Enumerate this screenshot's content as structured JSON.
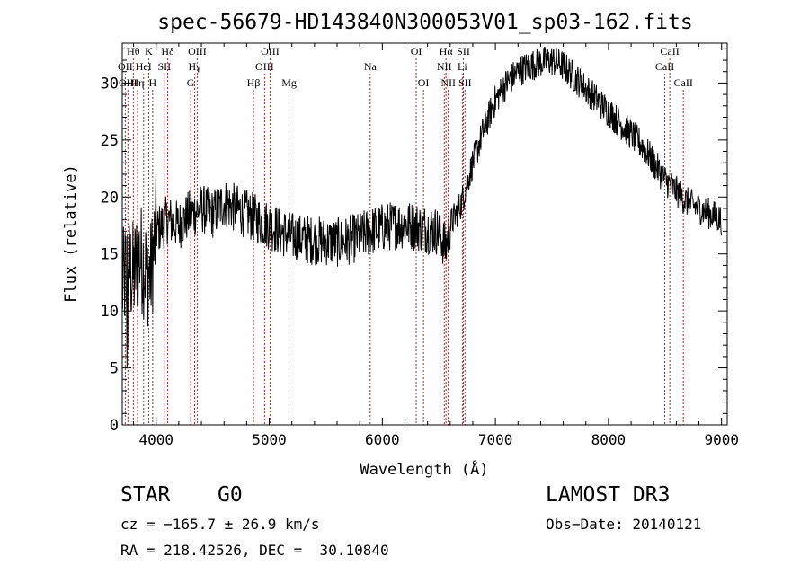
{
  "chart_data": {
    "type": "line",
    "title": "spec-56679-HD143840N300053V01_sp03-162.fits",
    "xlabel": "Wavelength (Å)",
    "ylabel": "Flux (relative)",
    "xlim": [
      3700,
      9050
    ],
    "ylim": [
      0,
      33.5
    ],
    "xticks": [
      4000,
      5000,
      6000,
      7000,
      8000,
      9000
    ],
    "yticks": [
      0,
      5,
      10,
      15,
      20,
      25,
      30
    ],
    "line_color": "#000000",
    "marker_color": "#b22222",
    "spectrum_anchors": {
      "x": [
        3700,
        3750,
        3800,
        3850,
        3900,
        3950,
        4000,
        4100,
        4200,
        4300,
        4400,
        4500,
        4600,
        4700,
        4800,
        4900,
        5000,
        5100,
        5200,
        5300,
        5400,
        5500,
        5600,
        5700,
        5800,
        5900,
        6000,
        6100,
        6200,
        6300,
        6400,
        6500,
        6560,
        6600,
        6700,
        6800,
        6900,
        7000,
        7100,
        7200,
        7300,
        7400,
        7500,
        7600,
        7700,
        7800,
        7900,
        8000,
        8100,
        8200,
        8300,
        8400,
        8500,
        8600,
        8700,
        8800,
        8900,
        9000
      ],
      "y": [
        12,
        14,
        13,
        15,
        14,
        13,
        17,
        18,
        17.5,
        18.5,
        19,
        18.5,
        19.5,
        19,
        18.5,
        18,
        17.5,
        17,
        16.5,
        16.3,
        16.2,
        16.1,
        16,
        16.2,
        16.5,
        17,
        17.3,
        17.5,
        17.6,
        17.4,
        17.2,
        17,
        15.5,
        17.5,
        19.5,
        23,
        26,
        28.5,
        30,
        31,
        31.5,
        31.8,
        32,
        31.5,
        30.5,
        29.5,
        28.5,
        27.5,
        26.5,
        25.5,
        24.5,
        23,
        21.5,
        20.5,
        19.5,
        19,
        18.5,
        18
      ]
    },
    "line_markers": [
      {
        "label": "Hθ",
        "x": 3798,
        "row": 0
      },
      {
        "label": "OII",
        "x": 3727,
        "row": 1
      },
      {
        "label": "OIII",
        "x": 3750,
        "row": 2
      },
      {
        "label": "Hη",
        "x": 3835,
        "row": 2
      },
      {
        "label": "HeI",
        "x": 3889,
        "row": 1
      },
      {
        "label": "K",
        "x": 3934,
        "row": 0
      },
      {
        "label": "H",
        "x": 3969,
        "row": 2
      },
      {
        "label": "SII",
        "x": 4072,
        "row": 1
      },
      {
        "label": "Hδ",
        "x": 4102,
        "row": 0
      },
      {
        "label": "OIII",
        "x": 4363,
        "row": 0
      },
      {
        "label": "Hγ",
        "x": 4340,
        "row": 1
      },
      {
        "label": "G",
        "x": 4305,
        "row": 2
      },
      {
        "label": "Hβ",
        "x": 4861,
        "row": 2
      },
      {
        "label": "OIII",
        "x": 5007,
        "row": 0
      },
      {
        "label": "OIII",
        "x": 4959,
        "row": 1
      },
      {
        "label": "Mg",
        "x": 5175,
        "row": 2
      },
      {
        "label": "Na",
        "x": 5893,
        "row": 1
      },
      {
        "label": "OI",
        "x": 6300,
        "row": 0
      },
      {
        "label": "OI",
        "x": 6364,
        "row": 2
      },
      {
        "label": "Hα",
        "x": 6563,
        "row": 0
      },
      {
        "label": "NII",
        "x": 6548,
        "row": 1
      },
      {
        "label": "NII",
        "x": 6583,
        "row": 2
      },
      {
        "label": "SII",
        "x": 6717,
        "row": 0
      },
      {
        "label": "Li",
        "x": 6708,
        "row": 1
      },
      {
        "label": "SII",
        "x": 6731,
        "row": 2
      },
      {
        "label": "CaII",
        "x": 8542,
        "row": 0
      },
      {
        "label": "CaII",
        "x": 8498,
        "row": 1
      },
      {
        "label": "CaII",
        "x": 8662,
        "row": 2
      }
    ]
  },
  "footer": {
    "object_class": "STAR",
    "subclass": "G0",
    "survey": "LAMOST DR3",
    "redshift": "cz = −165.7 ± 26.9 km/s",
    "obs_date": "Obs−Date: 20140121",
    "coords": "RA = 218.42526, DEC =  30.10840"
  }
}
